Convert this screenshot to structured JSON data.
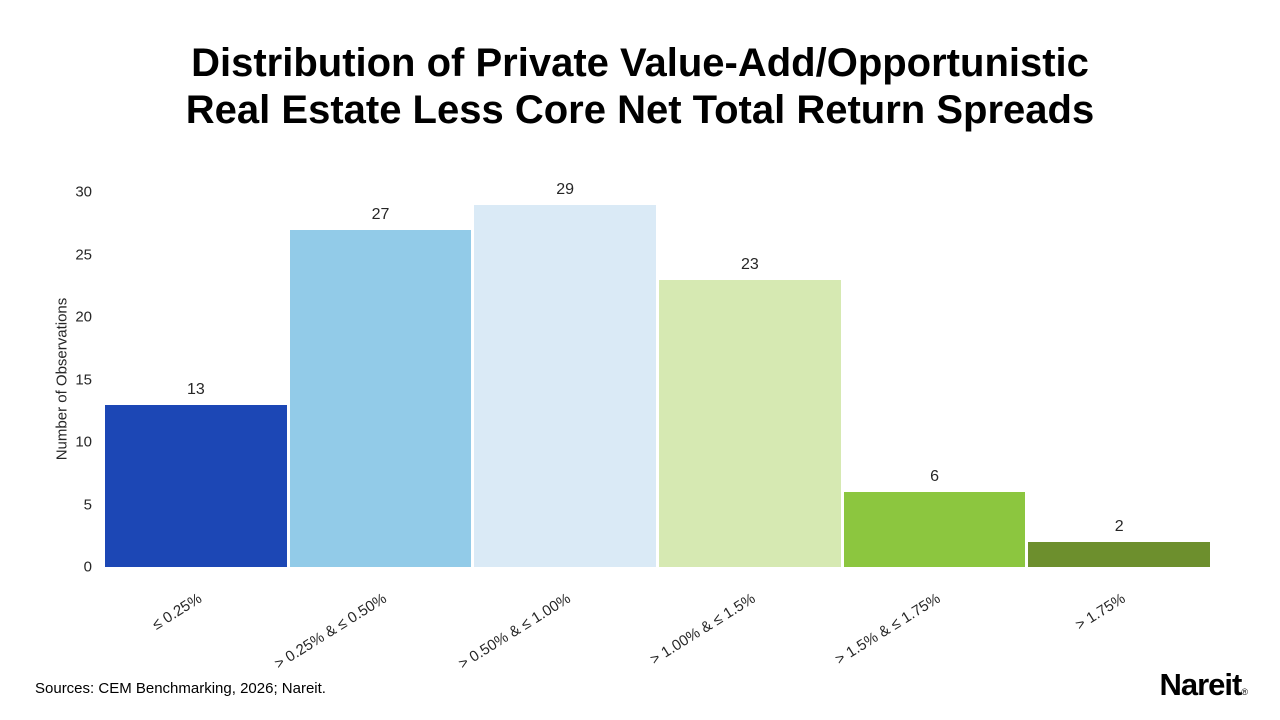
{
  "title": {
    "line1": "Distribution of Private Value-Add/Opportunistic",
    "line2": "Real Estate Less Core Net Total Return Spreads"
  },
  "chart_data": {
    "type": "bar",
    "title": "Distribution of Private Value-Add/Opportunistic Real Estate Less Core Net Total Return Spreads",
    "categories": [
      "≤ 0.25%",
      "> 0.25% & ≤ 0.50%",
      "> 0.50% & ≤ 1.00%",
      "> 1.00% & ≤ 1.5%",
      "> 1.5% & ≤ 1.75%",
      "> 1.75%"
    ],
    "values": [
      13,
      27,
      29,
      23,
      6,
      2
    ],
    "bar_colors": [
      "#1C47B5",
      "#92CBE8",
      "#DAEAF6",
      "#D6E9B2",
      "#8CC63F",
      "#6D8F2D"
    ],
    "xlabel": "",
    "ylabel": "Number of Observations",
    "ylim": [
      0,
      30
    ],
    "yticks": [
      0,
      5,
      10,
      15,
      20,
      25,
      30
    ],
    "grid": false,
    "legend": false,
    "data_labels": true,
    "x_label_rotation_deg": -32
  },
  "footer": {
    "source": "Sources: CEM Benchmarking, 2026; Nareit.",
    "logo_text": "Nareit",
    "logo_reg": "®"
  }
}
